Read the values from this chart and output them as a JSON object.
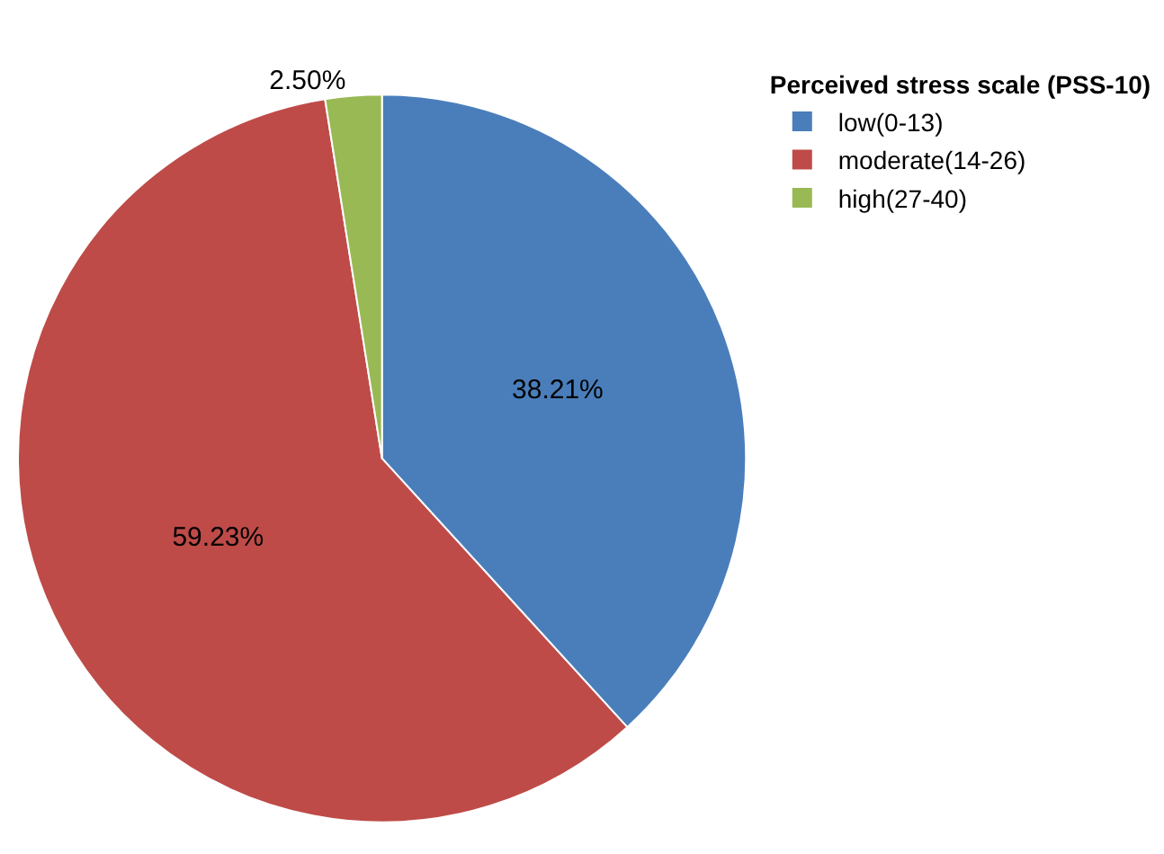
{
  "chart_data": {
    "type": "pie",
    "legend_title": "Perceived stress scale (PSS-10)",
    "legend": "top right",
    "categories": [
      "low(0-13)",
      "moderate(14-26)",
      "high(27-40)"
    ],
    "values": [
      38.21,
      59.23,
      2.5
    ],
    "colors": [
      "#4a7ebb",
      "#be4b48",
      "#98b954"
    ],
    "value_labels": [
      "38.21%",
      "59.23%",
      "2.50%"
    ]
  }
}
